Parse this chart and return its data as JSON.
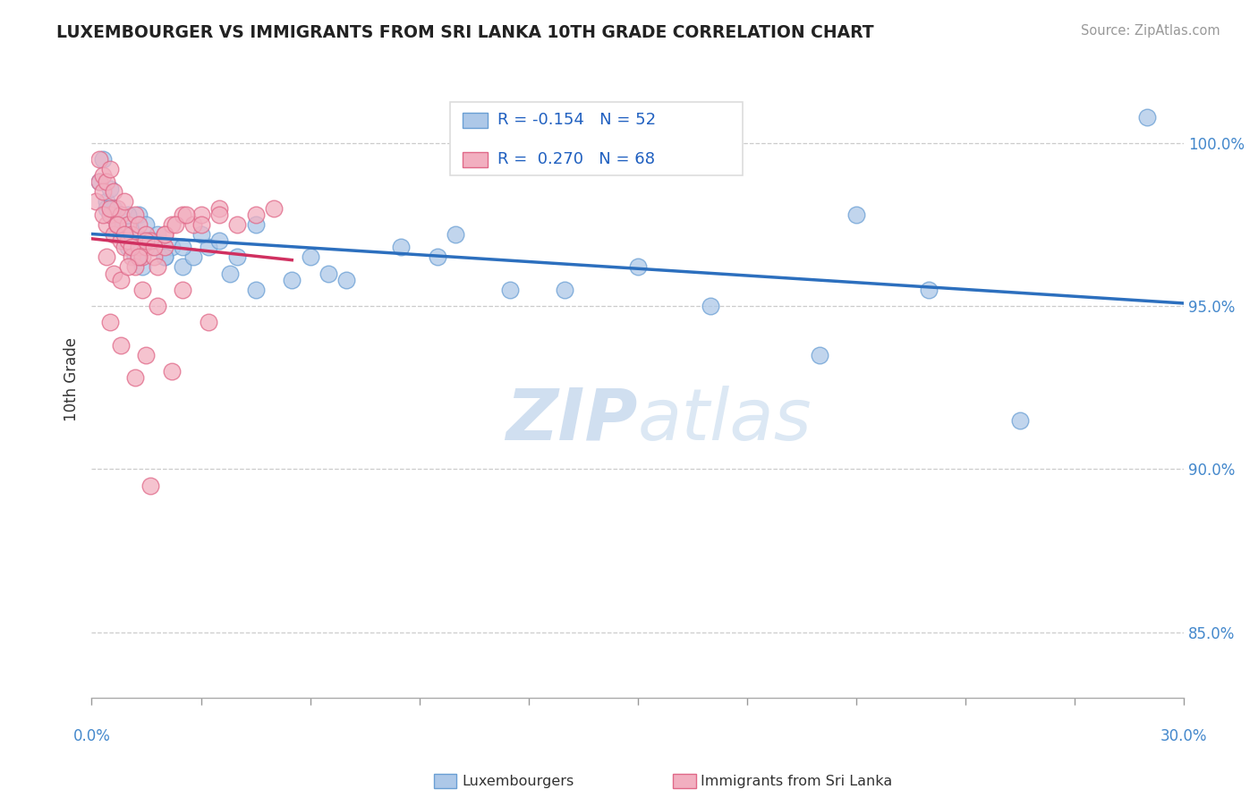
{
  "title": "LUXEMBOURGER VS IMMIGRANTS FROM SRI LANKA 10TH GRADE CORRELATION CHART",
  "source": "Source: ZipAtlas.com",
  "ylabel": "10th Grade",
  "xlim": [
    0.0,
    30.0
  ],
  "ylim": [
    83.0,
    102.5
  ],
  "y_ticks": [
    85.0,
    90.0,
    95.0,
    100.0
  ],
  "y_tick_labels": [
    "85.0%",
    "90.0%",
    "95.0%",
    "100.0%"
  ],
  "blue_R": -0.154,
  "blue_N": 52,
  "pink_R": 0.27,
  "pink_N": 68,
  "blue_color": "#adc8e8",
  "blue_edge": "#6a9fd4",
  "pink_color": "#f2afc0",
  "pink_edge": "#e06888",
  "blue_line_color": "#2c6fbe",
  "pink_line_color": "#d03060",
  "watermark_zip": "ZIP",
  "watermark_atlas": "atlas",
  "watermark_color": "#d0dff0",
  "blue_scatter_x": [
    0.2,
    0.3,
    0.4,
    0.5,
    0.5,
    0.6,
    0.7,
    0.8,
    0.9,
    1.0,
    1.1,
    1.2,
    1.3,
    1.4,
    1.5,
    1.6,
    1.7,
    1.8,
    2.0,
    2.2,
    2.5,
    2.8,
    3.2,
    3.5,
    4.0,
    4.5,
    5.5,
    6.5,
    0.4,
    0.7,
    1.0,
    1.3,
    1.6,
    2.0,
    2.5,
    3.0,
    3.8,
    4.5,
    6.0,
    7.0,
    8.5,
    10.0,
    11.5,
    13.0,
    15.0,
    17.0,
    20.0,
    21.0,
    23.0,
    25.5,
    29.0,
    9.5
  ],
  "blue_scatter_y": [
    98.8,
    99.5,
    98.2,
    98.6,
    97.8,
    98.0,
    97.5,
    97.2,
    97.0,
    96.8,
    97.3,
    96.5,
    97.8,
    96.2,
    97.5,
    96.8,
    97.0,
    97.2,
    96.5,
    96.8,
    96.2,
    96.5,
    96.8,
    97.0,
    96.5,
    97.5,
    95.8,
    96.0,
    98.0,
    97.5,
    97.8,
    96.5,
    97.0,
    96.5,
    96.8,
    97.2,
    96.0,
    95.5,
    96.5,
    95.8,
    96.8,
    97.2,
    95.5,
    95.5,
    96.2,
    95.0,
    93.5,
    97.8,
    95.5,
    91.5,
    100.8,
    96.5
  ],
  "pink_scatter_x": [
    0.1,
    0.2,
    0.2,
    0.3,
    0.3,
    0.4,
    0.4,
    0.5,
    0.5,
    0.6,
    0.6,
    0.7,
    0.7,
    0.8,
    0.8,
    0.9,
    0.9,
    1.0,
    1.0,
    1.1,
    1.1,
    1.2,
    1.2,
    1.3,
    1.3,
    1.4,
    1.5,
    1.5,
    1.6,
    1.7,
    1.8,
    2.0,
    2.0,
    2.2,
    2.5,
    2.8,
    3.0,
    3.5,
    4.0,
    4.5,
    5.0,
    0.3,
    0.5,
    0.7,
    0.9,
    1.1,
    1.3,
    1.5,
    1.7,
    2.0,
    2.3,
    2.6,
    3.0,
    3.5,
    0.4,
    0.6,
    0.8,
    1.0,
    1.4,
    1.8,
    2.5,
    3.2,
    1.5,
    2.2,
    0.5,
    0.8,
    1.2,
    1.6
  ],
  "pink_scatter_y": [
    98.2,
    99.5,
    98.8,
    99.0,
    98.5,
    98.8,
    97.5,
    99.2,
    97.8,
    98.5,
    97.2,
    98.0,
    97.5,
    97.8,
    97.0,
    98.2,
    96.8,
    97.5,
    97.0,
    97.2,
    96.5,
    97.8,
    96.2,
    97.5,
    96.8,
    96.5,
    97.2,
    96.8,
    97.0,
    96.5,
    96.2,
    97.2,
    96.8,
    97.5,
    97.8,
    97.5,
    97.8,
    98.0,
    97.5,
    97.8,
    98.0,
    97.8,
    98.0,
    97.5,
    97.2,
    96.8,
    96.5,
    97.0,
    96.8,
    97.2,
    97.5,
    97.8,
    97.5,
    97.8,
    96.5,
    96.0,
    95.8,
    96.2,
    95.5,
    95.0,
    95.5,
    94.5,
    93.5,
    93.0,
    94.5,
    93.8,
    92.8,
    89.5
  ]
}
